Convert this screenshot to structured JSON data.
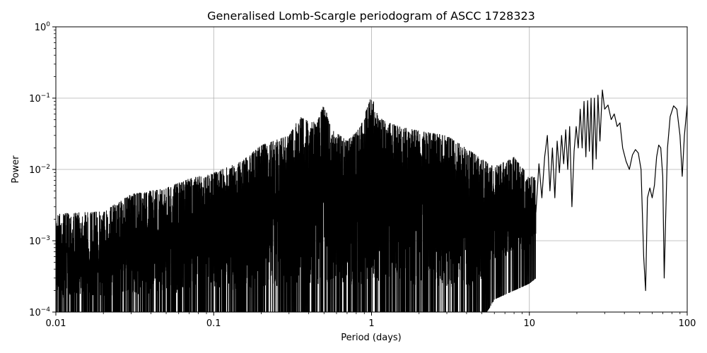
{
  "chart_data": {
    "type": "line",
    "title": "Generalised Lomb-Scargle periodogram of ASCC 1728323",
    "xlabel": "Period (days)",
    "ylabel": "Power",
    "xscale": "log",
    "yscale": "log",
    "xlim": [
      0.01,
      100
    ],
    "ylim": [
      0.0001,
      1
    ],
    "grid": true,
    "x_ticks": [
      {
        "value": 0.01,
        "label": "0.01"
      },
      {
        "value": 0.1,
        "label": "0.1"
      },
      {
        "value": 1,
        "label": "1"
      },
      {
        "value": 10,
        "label": "10"
      },
      {
        "value": 100,
        "label": "100"
      }
    ],
    "y_ticks": [
      {
        "value": 0.0001,
        "base": "10",
        "exp": "−4"
      },
      {
        "value": 0.001,
        "base": "10",
        "exp": "−3"
      },
      {
        "value": 0.01,
        "base": "10",
        "exp": "−2"
      },
      {
        "value": 0.1,
        "base": "10",
        "exp": "−1"
      },
      {
        "value": 1,
        "base": "10",
        "exp": "0"
      }
    ],
    "line_color": "#000000",
    "envelope": {
      "period": [
        0.01,
        0.02,
        0.03,
        0.05,
        0.07,
        0.1,
        0.15,
        0.2,
        0.3,
        0.35,
        0.45,
        0.5,
        0.55,
        0.7,
        0.85,
        1.0,
        1.1,
        1.5,
        2.0,
        3.0,
        4.0,
        5.0,
        6.0,
        8.0,
        10.0,
        12.0
      ],
      "max_power": [
        0.0024,
        0.0026,
        0.0045,
        0.0055,
        0.0075,
        0.009,
        0.013,
        0.022,
        0.03,
        0.055,
        0.045,
        0.085,
        0.04,
        0.025,
        0.04,
        0.11,
        0.055,
        0.04,
        0.035,
        0.03,
        0.02,
        0.014,
        0.011,
        0.015,
        0.008,
        0.008
      ],
      "min_power": [
        0.0001,
        0.0001,
        0.0001,
        0.0001,
        0.0001,
        0.0001,
        0.0001,
        0.0001,
        0.0001,
        0.0001,
        0.0001,
        0.0001,
        0.0001,
        0.0001,
        0.0001,
        0.0001,
        0.0001,
        0.0001,
        0.0001,
        0.0001,
        0.0001,
        0.00015,
        0.0003,
        0.0004,
        0.0005,
        0.0007
      ]
    },
    "series": [
      {
        "values": [
          [
            11.0,
            0.0025
          ],
          [
            11.5,
            0.012
          ],
          [
            12.0,
            0.004
          ],
          [
            12.5,
            0.015
          ],
          [
            13.0,
            0.03
          ],
          [
            13.5,
            0.005
          ],
          [
            14.0,
            0.02
          ],
          [
            14.5,
            0.004
          ],
          [
            15.0,
            0.025
          ],
          [
            15.5,
            0.009
          ],
          [
            16.0,
            0.03
          ],
          [
            16.5,
            0.012
          ],
          [
            17.0,
            0.036
          ],
          [
            17.5,
            0.01
          ],
          [
            18.0,
            0.04
          ],
          [
            18.6,
            0.003
          ],
          [
            19.2,
            0.018
          ],
          [
            19.8,
            0.04
          ],
          [
            20.4,
            0.02
          ],
          [
            21.0,
            0.07
          ],
          [
            21.6,
            0.02
          ],
          [
            22.2,
            0.09
          ],
          [
            22.8,
            0.015
          ],
          [
            23.4,
            0.092
          ],
          [
            24.0,
            0.018
          ],
          [
            24.6,
            0.1
          ],
          [
            25.2,
            0.01
          ],
          [
            25.8,
            0.1
          ],
          [
            26.5,
            0.014
          ],
          [
            27.2,
            0.11
          ],
          [
            28.0,
            0.025
          ],
          [
            29.0,
            0.13
          ],
          [
            30.0,
            0.07
          ],
          [
            31.5,
            0.08
          ],
          [
            33.0,
            0.05
          ],
          [
            34.5,
            0.06
          ],
          [
            36.0,
            0.04
          ],
          [
            37.5,
            0.045
          ],
          [
            39.0,
            0.02
          ],
          [
            41.0,
            0.013
          ],
          [
            43.0,
            0.01
          ],
          [
            45.0,
            0.016
          ],
          [
            47.0,
            0.019
          ],
          [
            49.0,
            0.017
          ],
          [
            51.0,
            0.01
          ],
          [
            53.0,
            0.0006
          ],
          [
            54.5,
            0.0002
          ],
          [
            56.0,
            0.004
          ],
          [
            58.0,
            0.0055
          ],
          [
            60.0,
            0.004
          ],
          [
            62.0,
            0.006
          ],
          [
            64.0,
            0.015
          ],
          [
            66.0,
            0.022
          ],
          [
            68.0,
            0.02
          ],
          [
            70.0,
            0.008
          ],
          [
            71.5,
            0.0003
          ],
          [
            73.0,
            0.002
          ],
          [
            75.0,
            0.02
          ],
          [
            78.0,
            0.055
          ],
          [
            82.0,
            0.078
          ],
          [
            86.0,
            0.07
          ],
          [
            90.0,
            0.03
          ],
          [
            93.0,
            0.008
          ],
          [
            96.0,
            0.03
          ],
          [
            100.0,
            0.08
          ]
        ]
      }
    ]
  }
}
